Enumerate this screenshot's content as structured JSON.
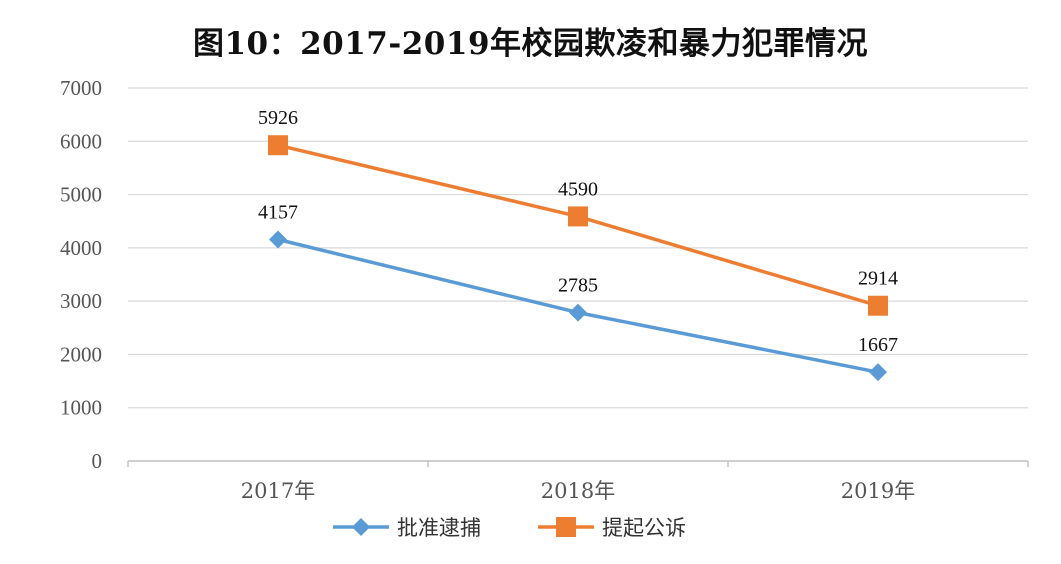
{
  "chart_data": {
    "type": "line",
    "title": "图10：2017-2019年校园欺凌和暴力犯罪情况",
    "categories": [
      "2017年",
      "2018年",
      "2019年"
    ],
    "series": [
      {
        "name": "批准逮捕",
        "values": [
          4157,
          2785,
          1667
        ],
        "color": "#5B9BD5",
        "marker": "diamond"
      },
      {
        "name": "提起公诉",
        "values": [
          5926,
          4590,
          2914
        ],
        "color": "#ED7D31",
        "marker": "square"
      }
    ],
    "ylim": [
      0,
      7000
    ],
    "yticks": [
      0,
      1000,
      2000,
      3000,
      4000,
      5000,
      6000,
      7000
    ],
    "grid": true,
    "legend_position": "bottom",
    "data_labels": true
  }
}
